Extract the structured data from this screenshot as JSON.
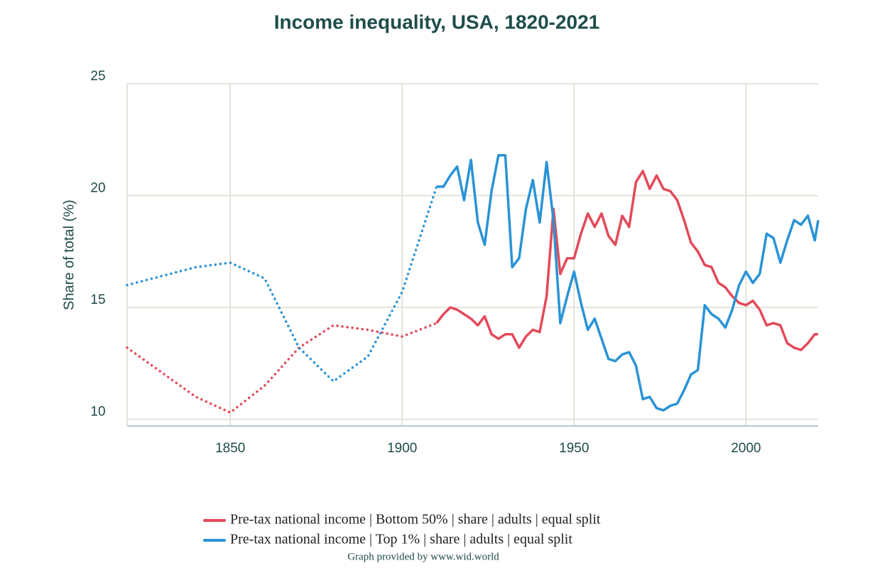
{
  "chart_data": {
    "type": "line",
    "title": "Income inequality, USA, 1820-2021",
    "y_label": "Share of total (%)",
    "footer": "Graph provided by www.wid.world",
    "xlim": [
      1820,
      2021
    ],
    "xticks": [
      1850,
      1900,
      1950,
      2000
    ],
    "ylim": [
      9.7,
      25
    ],
    "yticks": [
      10,
      15,
      20,
      25
    ],
    "grid": true,
    "legend": "bottom",
    "interpolated_until": 1910,
    "x": [
      1820,
      1830,
      1840,
      1850,
      1860,
      1870,
      1880,
      1890,
      1900,
      1910,
      1912,
      1914,
      1916,
      1918,
      1920,
      1922,
      1924,
      1926,
      1928,
      1930,
      1932,
      1934,
      1936,
      1938,
      1940,
      1942,
      1944,
      1946,
      1948,
      1950,
      1952,
      1954,
      1956,
      1958,
      1960,
      1962,
      1964,
      1966,
      1968,
      1970,
      1972,
      1974,
      1976,
      1978,
      1980,
      1982,
      1984,
      1986,
      1988,
      1990,
      1992,
      1994,
      1996,
      1998,
      2000,
      2002,
      2004,
      2006,
      2008,
      2010,
      2012,
      2014,
      2016,
      2018,
      2020,
      2021
    ],
    "series": [
      {
        "name": "Pre-tax national income | Bottom 50% | share | adults | equal split",
        "color": "#e34a5a",
        "values": [
          13.2,
          12.1,
          11.0,
          10.3,
          11.5,
          13.2,
          14.2,
          14.0,
          13.7,
          14.3,
          14.7,
          15.0,
          14.9,
          14.7,
          14.5,
          14.2,
          14.6,
          13.8,
          13.6,
          13.8,
          13.8,
          13.2,
          13.7,
          14.0,
          13.9,
          15.5,
          19.4,
          16.5,
          17.2,
          17.2,
          18.3,
          19.2,
          18.6,
          19.2,
          18.2,
          17.8,
          19.1,
          18.6,
          20.6,
          21.1,
          20.3,
          20.9,
          20.3,
          20.2,
          19.8,
          18.9,
          17.9,
          17.5,
          16.9,
          16.8,
          16.1,
          15.9,
          15.5,
          15.2,
          15.1,
          15.3,
          14.9,
          14.2,
          14.3,
          14.2,
          13.4,
          13.2,
          13.1,
          13.4,
          13.8,
          13.8
        ]
      },
      {
        "name": "Pre-tax national income | Top 1% | share | adults | equal split",
        "color": "#2a93d5",
        "values": [
          16.0,
          16.4,
          16.8,
          17.0,
          16.3,
          13.2,
          11.7,
          12.8,
          15.7,
          20.4,
          20.4,
          20.9,
          21.3,
          19.8,
          21.6,
          18.8,
          17.8,
          20.2,
          21.8,
          21.8,
          16.8,
          17.2,
          19.4,
          20.7,
          18.8,
          21.5,
          18.9,
          14.3,
          15.5,
          16.6,
          15.2,
          14.0,
          14.5,
          13.6,
          12.7,
          12.6,
          12.9,
          13.0,
          12.4,
          10.9,
          11.0,
          10.5,
          10.4,
          10.6,
          10.7,
          11.3,
          12.0,
          12.2,
          15.1,
          14.7,
          14.5,
          14.1,
          14.9,
          16.0,
          16.6,
          16.1,
          16.5,
          18.3,
          18.1,
          17.0,
          18.0,
          18.9,
          18.7,
          19.1,
          18.0,
          18.9
        ]
      }
    ]
  }
}
